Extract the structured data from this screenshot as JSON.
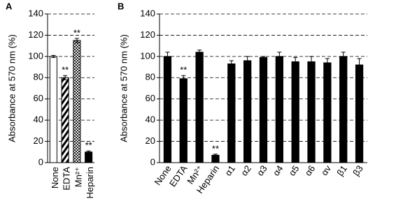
{
  "chart_data": [
    {
      "type": "bar",
      "panel_label": "A",
      "y_label": "Absorbance at 570 nm (%)",
      "categories": [
        "None",
        "EDTA",
        "Mn²⁺",
        "Heparin"
      ],
      "values": [
        100,
        80,
        115,
        10
      ],
      "errors": [
        1,
        2,
        2,
        1
      ],
      "annotations": [
        null,
        "**",
        "**",
        "**"
      ],
      "patterns": [
        "white",
        "hatch",
        "dots",
        "black"
      ],
      "ylim": [
        0,
        140
      ],
      "yticks": [
        0,
        20,
        40,
        60,
        80,
        100,
        120,
        140
      ],
      "grid": true,
      "label_rotation": -90
    },
    {
      "type": "bar",
      "panel_label": "B",
      "y_label": "Absorbance at 570 nm (%)",
      "categories": [
        "None",
        "EDTA",
        "Mn²⁺",
        "Heparin",
        "α1",
        "α2",
        "α3",
        "α4",
        "α5",
        "α6",
        "αv",
        "β1",
        "β3"
      ],
      "values": [
        100,
        79,
        104,
        7,
        93,
        96,
        99,
        100,
        95,
        95,
        94,
        100,
        92
      ],
      "errors": [
        4,
        3,
        2,
        1,
        3,
        4,
        1,
        4,
        4,
        5,
        4,
        4,
        6
      ],
      "annotations": [
        null,
        "**",
        null,
        "**",
        null,
        null,
        null,
        null,
        null,
        null,
        null,
        null,
        null
      ],
      "patterns": [
        "black",
        "black",
        "black",
        "black",
        "black",
        "black",
        "black",
        "black",
        "black",
        "black",
        "black",
        "black",
        "black"
      ],
      "ylim": [
        0,
        140
      ],
      "yticks": [
        0,
        20,
        40,
        60,
        80,
        100,
        120,
        140
      ],
      "grid": true,
      "label_rotation": -55
    }
  ]
}
